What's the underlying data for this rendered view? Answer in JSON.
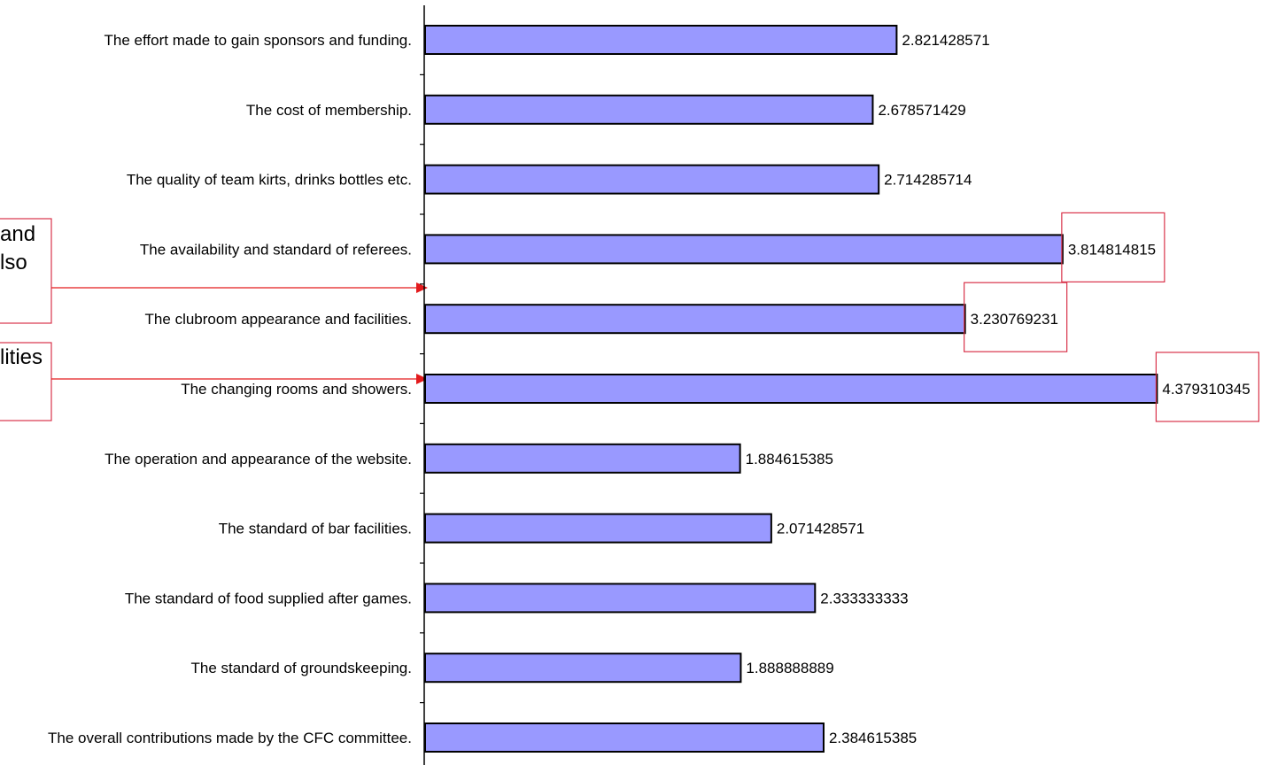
{
  "chart_data": {
    "type": "bar",
    "orientation": "horizontal",
    "categories": [
      "The effort made to gain sponsors and funding.",
      "The cost of membership.",
      "The quality of team kirts, drinks bottles etc.",
      "The availability and standard of referees.",
      "The clubroom appearance and facilities.",
      "The changing rooms and showers.",
      "The operation and appearance of the website.",
      "The standard of bar facilities.",
      "The standard of food supplied after games.",
      "The standard of groundskeeping.",
      "The overall contributions made by the CFC committee."
    ],
    "values": [
      2.821428571,
      2.678571429,
      2.714285714,
      3.814814815,
      3.230769231,
      4.379310345,
      1.884615385,
      2.071428571,
      2.333333333,
      1.888888889,
      2.384615385
    ],
    "value_labels": [
      "2.821428571",
      "2.678571429",
      "2.714285714",
      "3.814814815",
      "3.230769231",
      "4.379310345",
      "1.884615385",
      "2.071428571",
      "2.333333333",
      "1.888888889",
      "2.384615385"
    ],
    "highlighted_labels": [
      "3.814814815",
      "3.230769231",
      "4.379310345"
    ],
    "xlim": [
      0,
      4.379310345
    ],
    "grid": false,
    "legend": "none"
  },
  "callouts": [
    {
      "lines": [
        "and",
        "lso"
      ]
    },
    {
      "lines": [
        "lities"
      ]
    }
  ],
  "colors": {
    "bar_fill": "#9999ff",
    "bar_stroke": "#000000",
    "axis": "#000000",
    "highlight_box": "#d9344b",
    "arrow": "#e31a1c"
  }
}
